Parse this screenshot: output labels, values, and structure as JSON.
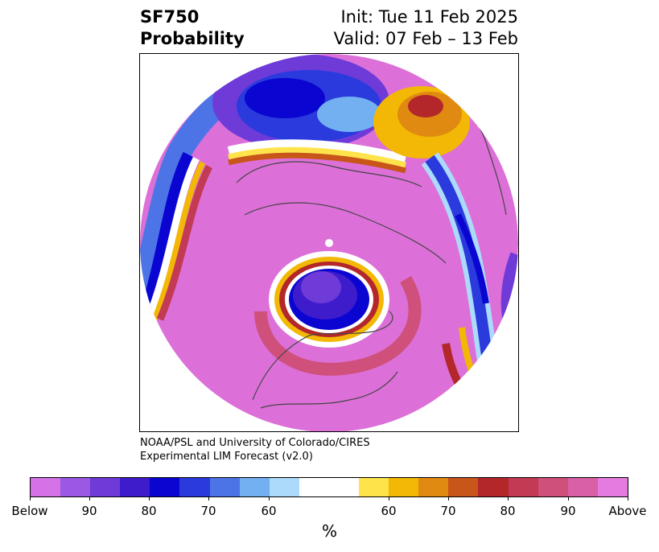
{
  "header": {
    "title_line1": "SF750",
    "title_line2": "Probability",
    "init_text": "Init: Tue 11 Feb 2025",
    "valid_text": "Valid: 07 Feb – 13 Feb"
  },
  "credit": {
    "line1": "NOAA/PSL and University of Colorado/CIRES",
    "line2": "Experimental LIM Forecast (v2.0)"
  },
  "colorbar": {
    "colors": [
      "#d672e8",
      "#9a58e3",
      "#6e3ad8",
      "#3f1ccb",
      "#0a05d1",
      "#2a3adc",
      "#4d74e6",
      "#72b0f1",
      "#acdafb",
      "#ffffff",
      "#ffffff",
      "#fee44a",
      "#f2b805",
      "#e08a12",
      "#c85618",
      "#b3262a",
      "#c33a54",
      "#cf507a",
      "#d960a6",
      "#e57ae0"
    ],
    "tick_labels": [
      "Below",
      "90",
      "80",
      "70",
      "60",
      "60",
      "70",
      "80",
      "90",
      "Above"
    ],
    "unit": "%"
  },
  "map": {
    "projection": "north polar stereographic",
    "dominant_color": "#db6ed6"
  }
}
